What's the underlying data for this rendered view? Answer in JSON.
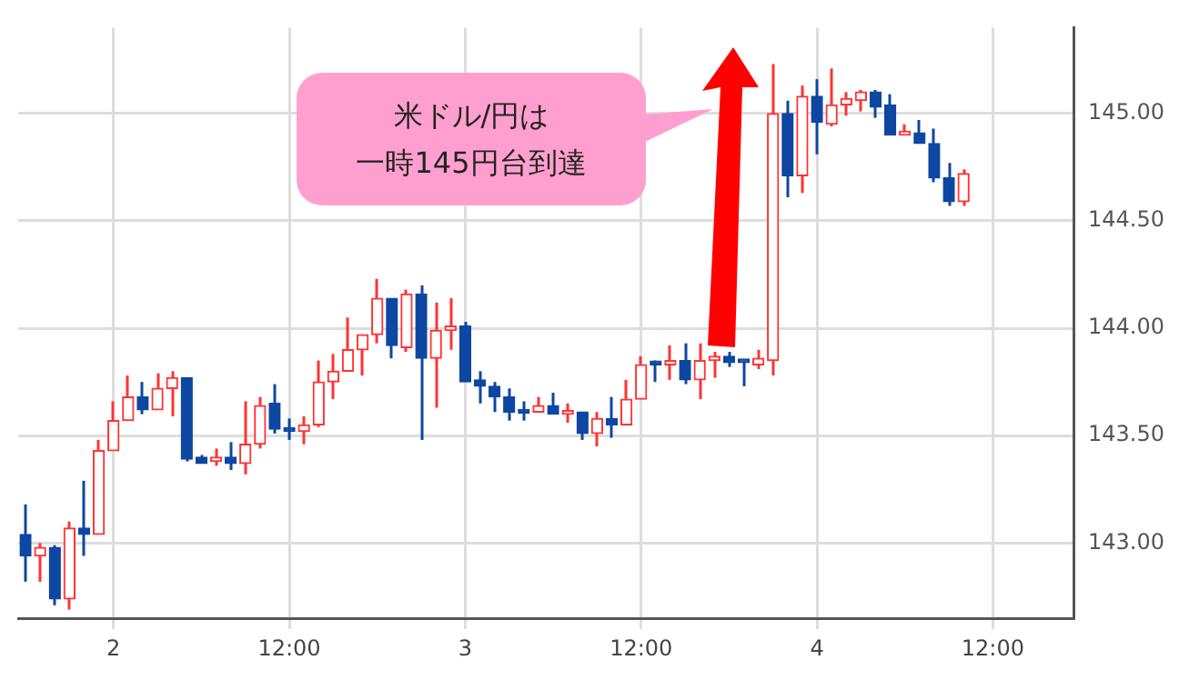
{
  "chart_data": {
    "type": "candlestick",
    "categories": [
      null,
      null,
      null,
      null,
      null,
      null,
      "2",
      null,
      null,
      null,
      null,
      null,
      null,
      null,
      null,
      null,
      null,
      null,
      "12:00",
      null,
      null,
      null,
      null,
      null,
      null,
      null,
      null,
      null,
      null,
      null,
      "3",
      null,
      null,
      null,
      null,
      null,
      null,
      null,
      null,
      null,
      null,
      null,
      "12:00",
      null,
      null,
      null,
      null,
      null,
      null,
      null,
      null,
      null,
      null,
      null,
      "4",
      null,
      null,
      null,
      null,
      null,
      null,
      null,
      null,
      null,
      null,
      null,
      "12:00",
      null,
      null,
      null,
      null,
      null
    ],
    "ohlc": [
      [
        143.04,
        143.18,
        142.82,
        142.94
      ],
      [
        142.94,
        143.0,
        142.82,
        142.98
      ],
      [
        142.98,
        142.99,
        142.71,
        142.74
      ],
      [
        142.74,
        143.1,
        142.69,
        143.07
      ],
      [
        143.07,
        143.29,
        142.94,
        143.04
      ],
      [
        143.04,
        143.48,
        143.04,
        143.43
      ],
      [
        143.43,
        143.66,
        143.43,
        143.57
      ],
      [
        143.57,
        143.78,
        143.57,
        143.68
      ],
      [
        143.68,
        143.75,
        143.6,
        143.62
      ],
      [
        143.62,
        143.79,
        143.62,
        143.72
      ],
      [
        143.72,
        143.8,
        143.59,
        143.77
      ],
      [
        143.77,
        143.77,
        143.38,
        143.39
      ],
      [
        143.4,
        143.41,
        143.37,
        143.37
      ],
      [
        143.38,
        143.44,
        143.36,
        143.4
      ],
      [
        143.4,
        143.47,
        143.34,
        143.37
      ],
      [
        143.37,
        143.66,
        143.32,
        143.46
      ],
      [
        143.46,
        143.68,
        143.44,
        143.64
      ],
      [
        143.65,
        143.74,
        143.51,
        143.53
      ],
      [
        143.53,
        143.58,
        143.48,
        143.52
      ],
      [
        143.52,
        143.59,
        143.46,
        143.55
      ],
      [
        143.55,
        143.85,
        143.54,
        143.75
      ],
      [
        143.75,
        143.88,
        143.67,
        143.8
      ],
      [
        143.8,
        144.05,
        143.8,
        143.9
      ],
      [
        143.9,
        143.97,
        143.78,
        143.97
      ],
      [
        143.97,
        144.23,
        143.93,
        144.14
      ],
      [
        144.14,
        144.14,
        143.86,
        143.92
      ],
      [
        143.91,
        144.18,
        143.89,
        144.16
      ],
      [
        144.16,
        144.2,
        143.48,
        143.86
      ],
      [
        143.86,
        144.12,
        143.63,
        143.99
      ],
      [
        143.99,
        144.14,
        143.9,
        144.01
      ],
      [
        144.01,
        144.03,
        143.75,
        143.75
      ],
      [
        143.76,
        143.8,
        143.65,
        143.73
      ],
      [
        143.73,
        143.75,
        143.61,
        143.68
      ],
      [
        143.68,
        143.72,
        143.57,
        143.61
      ],
      [
        143.615,
        143.66,
        143.57,
        143.605
      ],
      [
        143.61,
        143.68,
        143.61,
        143.64
      ],
      [
        143.64,
        143.7,
        143.6,
        143.6
      ],
      [
        143.6,
        143.65,
        143.56,
        143.61
      ],
      [
        143.61,
        143.61,
        143.48,
        143.51
      ],
      [
        143.51,
        143.61,
        143.45,
        143.58
      ],
      [
        143.58,
        143.68,
        143.49,
        143.55
      ],
      [
        143.55,
        143.76,
        143.55,
        143.67
      ],
      [
        143.67,
        143.87,
        143.67,
        143.83
      ],
      [
        143.84,
        143.85,
        143.75,
        143.83
      ],
      [
        143.83,
        143.92,
        143.76,
        143.85
      ],
      [
        143.85,
        143.93,
        143.74,
        143.76
      ],
      [
        143.76,
        143.93,
        143.67,
        143.85
      ],
      [
        143.85,
        143.89,
        143.77,
        143.87
      ],
      [
        143.87,
        143.89,
        143.82,
        143.84
      ],
      [
        143.85,
        143.85,
        143.73,
        143.84
      ],
      [
        143.83,
        143.9,
        143.81,
        143.86
      ],
      [
        143.85,
        145.23,
        143.78,
        145.0
      ],
      [
        145.0,
        145.06,
        144.61,
        144.71
      ],
      [
        144.71,
        145.13,
        144.63,
        145.08
      ],
      [
        145.08,
        145.16,
        144.81,
        144.96
      ],
      [
        144.95,
        145.21,
        144.94,
        145.04
      ],
      [
        145.04,
        145.1,
        144.99,
        145.07
      ],
      [
        145.06,
        145.11,
        145.01,
        145.1
      ],
      [
        145.1,
        145.11,
        144.98,
        145.03
      ],
      [
        145.04,
        145.09,
        144.9,
        144.9
      ],
      [
        144.9,
        144.95,
        144.9,
        144.91
      ],
      [
        144.91,
        144.97,
        144.86,
        144.86
      ],
      [
        144.86,
        144.93,
        144.68,
        144.7
      ],
      [
        144.7,
        144.77,
        144.57,
        144.59
      ],
      [
        144.59,
        144.74,
        144.57,
        144.72
      ],
      null,
      null,
      null,
      null,
      null,
      null,
      null
    ],
    "colors": [
      "#0d47a1",
      "#ff3333",
      "#0d47a1",
      "#ff3333",
      "#0d47a1",
      "#ff3333",
      "#ff3333",
      "#ff3333",
      "#0d47a1",
      "#ff3333",
      "#ff3333",
      "#0d47a1",
      "#0d47a1",
      "#ff3333",
      "#0d47a1",
      "#ff3333",
      "#ff3333",
      "#0d47a1",
      "#0d47a1",
      "#ff3333",
      "#ff3333",
      "#ff3333",
      "#ff3333",
      "#ff3333",
      "#ff3333",
      "#0d47a1",
      "#ff3333",
      "#0d47a1",
      "#ff3333",
      "#ff3333",
      "#0d47a1",
      "#0d47a1",
      "#0d47a1",
      "#0d47a1",
      "#0d47a1",
      "#ff3333",
      "#0d47a1",
      "#ff3333",
      "#0d47a1",
      "#ff3333",
      "#0d47a1",
      "#ff3333",
      "#ff3333",
      "#0d47a1",
      "#ff3333",
      "#0d47a1",
      "#ff3333",
      "#ff3333",
      "#0d47a1",
      "#0d47a1",
      "#ff3333",
      "#ff3333",
      "#0d47a1",
      "#ff3333",
      "#0d47a1",
      "#ff3333",
      "#ff3333",
      "#ff3333",
      "#0d47a1",
      "#0d47a1",
      "#ff3333",
      "#0d47a1",
      "#0d47a1",
      "#0d47a1",
      "#ff3333",
      null,
      null,
      null,
      null,
      null,
      null,
      null
    ],
    "ylim": [
      142.65,
      145.4
    ],
    "yticks": [
      {
        "value": 143,
        "label": "143.00"
      },
      {
        "value": 143.5,
        "label": "143.50"
      },
      {
        "value": 144,
        "label": "144.00"
      },
      {
        "value": 144.5,
        "label": "144.50"
      },
      {
        "value": 145,
        "label": "145.00"
      }
    ],
    "grid": true,
    "legend": false,
    "annotations": [
      "米ドル/円は",
      "一時145円台到達"
    ]
  }
}
